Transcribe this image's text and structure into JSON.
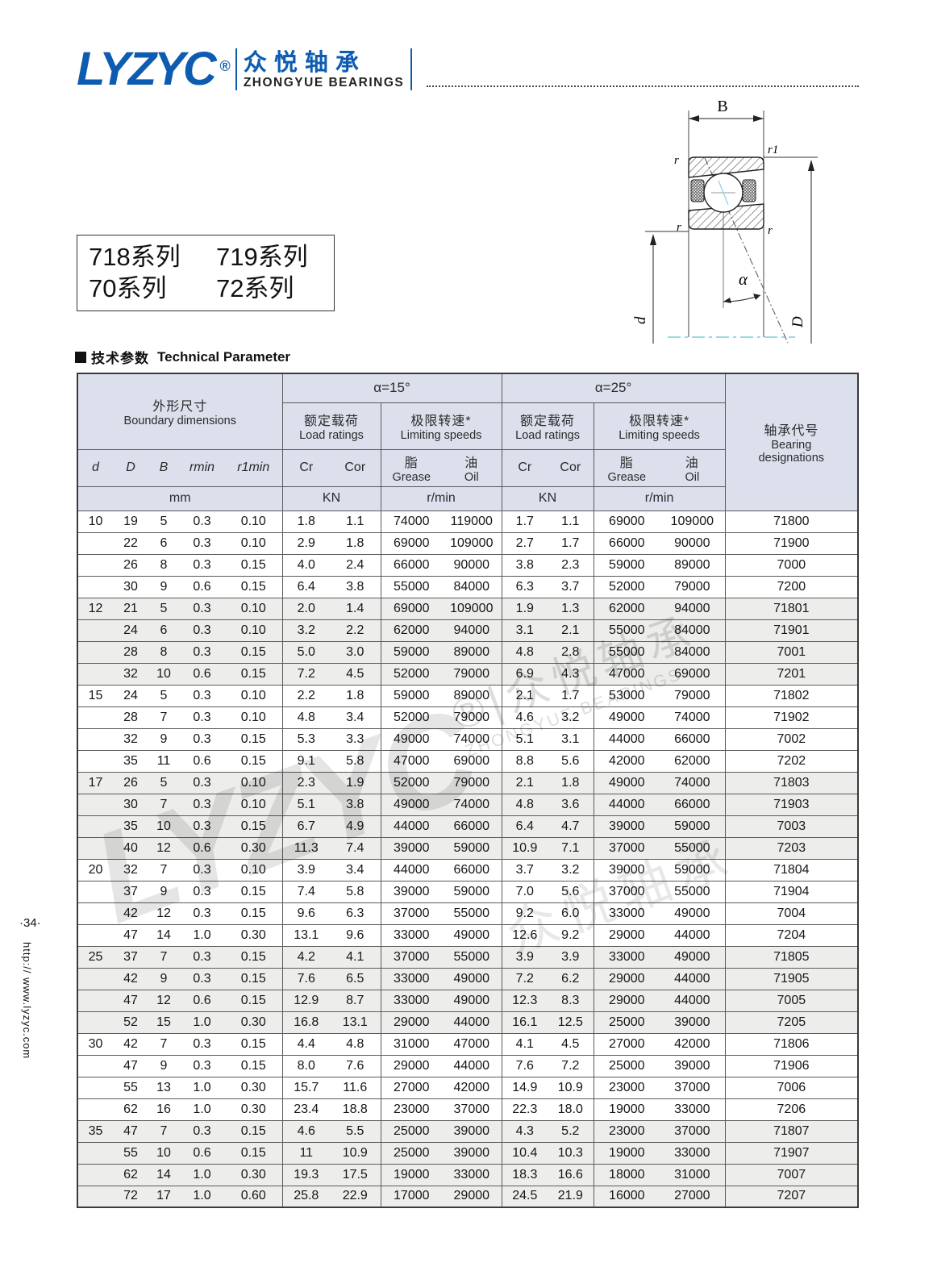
{
  "brand": {
    "logo": "LYZYC",
    "reg": "®",
    "cn": "众悦轴承",
    "en": "ZHONGYUE BEARINGS"
  },
  "series_box": {
    "line1_left": "718系列",
    "line1_right": "719系列",
    "line2_left": "70系列",
    "line2_right": "72系列"
  },
  "section": {
    "title_cn": "技术参数",
    "title_en": "Technical Parameter"
  },
  "sidebar": {
    "page": "·34·",
    "url": "http:// www.lyzyc.com"
  },
  "watermark": {
    "brand": "LYZYC",
    "cn": "®|众悦轴承",
    "en": "ZHONGYUE BEARINGS",
    "cn2": "众悦轴承"
  },
  "diagram": {
    "labels": {
      "B": "B",
      "r_top_left": "r",
      "r1_top_right": "r1",
      "r_mid_left": "r",
      "r_mid_right": "r",
      "alpha": "α",
      "d": "d",
      "D": "D"
    }
  },
  "table": {
    "header": {
      "boundary_cn": "外形尺寸",
      "boundary_en": "Boundary dimensions",
      "alpha15": "α=15°",
      "alpha25": "α=25°",
      "load_cn": "额定载荷",
      "load_en": "Load ratings",
      "speed_cn": "极限转速*",
      "speed_en": "Limiting speeds",
      "designation_cn": "轴承代号",
      "designation_en1": "Bearing",
      "designation_en2": "designations",
      "col_d": "d",
      "col_D": "D",
      "col_B": "B",
      "col_rmin": "rmin",
      "col_r1min": "r1min",
      "col_cr": "Cr",
      "col_cor": "Cor",
      "grease_cn": "脂",
      "grease_en": "Grease",
      "oil_cn": "油",
      "oil_en": "Oil",
      "unit_mm": "mm",
      "unit_kn": "KN",
      "unit_rmin": "r/min"
    },
    "rows": [
      [
        "10",
        "19",
        "5",
        "0.3",
        "0.10",
        "1.8",
        "1.1",
        "74000",
        "119000",
        "1.7",
        "1.1",
        "69000",
        "109000",
        "71800"
      ],
      [
        "",
        "22",
        "6",
        "0.3",
        "0.10",
        "2.9",
        "1.8",
        "69000",
        "109000",
        "2.7",
        "1.7",
        "66000",
        "90000",
        "71900"
      ],
      [
        "",
        "26",
        "8",
        "0.3",
        "0.15",
        "4.0",
        "2.4",
        "66000",
        "90000",
        "3.8",
        "2.3",
        "59000",
        "89000",
        "7000"
      ],
      [
        "",
        "30",
        "9",
        "0.6",
        "0.15",
        "6.4",
        "3.8",
        "55000",
        "84000",
        "6.3",
        "3.7",
        "52000",
        "79000",
        "7200"
      ],
      [
        "12",
        "21",
        "5",
        "0.3",
        "0.10",
        "2.0",
        "1.4",
        "69000",
        "109000",
        "1.9",
        "1.3",
        "62000",
        "94000",
        "71801"
      ],
      [
        "",
        "24",
        "6",
        "0.3",
        "0.10",
        "3.2",
        "2.2",
        "62000",
        "94000",
        "3.1",
        "2.1",
        "55000",
        "84000",
        "71901"
      ],
      [
        "",
        "28",
        "8",
        "0.3",
        "0.15",
        "5.0",
        "3.0",
        "59000",
        "89000",
        "4.8",
        "2.8",
        "55000",
        "84000",
        "7001"
      ],
      [
        "",
        "32",
        "10",
        "0.6",
        "0.15",
        "7.2",
        "4.5",
        "52000",
        "79000",
        "6.9",
        "4.3",
        "47000",
        "69000",
        "7201"
      ],
      [
        "15",
        "24",
        "5",
        "0.3",
        "0.10",
        "2.2",
        "1.8",
        "59000",
        "89000",
        "2.1",
        "1.7",
        "53000",
        "79000",
        "71802"
      ],
      [
        "",
        "28",
        "7",
        "0.3",
        "0.10",
        "4.8",
        "3.4",
        "52000",
        "79000",
        "4.6",
        "3.2",
        "49000",
        "74000",
        "71902"
      ],
      [
        "",
        "32",
        "9",
        "0.3",
        "0.15",
        "5.3",
        "3.3",
        "49000",
        "74000",
        "5.1",
        "3.1",
        "44000",
        "66000",
        "7002"
      ],
      [
        "",
        "35",
        "11",
        "0.6",
        "0.15",
        "9.1",
        "5.8",
        "47000",
        "69000",
        "8.8",
        "5.6",
        "42000",
        "62000",
        "7202"
      ],
      [
        "17",
        "26",
        "5",
        "0.3",
        "0.10",
        "2.3",
        "1.9",
        "52000",
        "79000",
        "2.1",
        "1.8",
        "49000",
        "74000",
        "71803"
      ],
      [
        "",
        "30",
        "7",
        "0.3",
        "0.10",
        "5.1",
        "3.8",
        "49000",
        "74000",
        "4.8",
        "3.6",
        "44000",
        "66000",
        "71903"
      ],
      [
        "",
        "35",
        "10",
        "0.3",
        "0.15",
        "6.7",
        "4.9",
        "44000",
        "66000",
        "6.4",
        "4.7",
        "39000",
        "59000",
        "7003"
      ],
      [
        "",
        "40",
        "12",
        "0.6",
        "0.30",
        "11.3",
        "7.4",
        "39000",
        "59000",
        "10.9",
        "7.1",
        "37000",
        "55000",
        "7203"
      ],
      [
        "20",
        "32",
        "7",
        "0.3",
        "0.10",
        "3.9",
        "3.4",
        "44000",
        "66000",
        "3.7",
        "3.2",
        "39000",
        "59000",
        "71804"
      ],
      [
        "",
        "37",
        "9",
        "0.3",
        "0.15",
        "7.4",
        "5.8",
        "39000",
        "59000",
        "7.0",
        "5.6",
        "37000",
        "55000",
        "71904"
      ],
      [
        "",
        "42",
        "12",
        "0.3",
        "0.15",
        "9.6",
        "6.3",
        "37000",
        "55000",
        "9.2",
        "6.0",
        "33000",
        "49000",
        "7004"
      ],
      [
        "",
        "47",
        "14",
        "1.0",
        "0.30",
        "13.1",
        "9.6",
        "33000",
        "49000",
        "12.6",
        "9.2",
        "29000",
        "44000",
        "7204"
      ],
      [
        "25",
        "37",
        "7",
        "0.3",
        "0.15",
        "4.2",
        "4.1",
        "37000",
        "55000",
        "3.9",
        "3.9",
        "33000",
        "49000",
        "71805"
      ],
      [
        "",
        "42",
        "9",
        "0.3",
        "0.15",
        "7.6",
        "6.5",
        "33000",
        "49000",
        "7.2",
        "6.2",
        "29000",
        "44000",
        "71905"
      ],
      [
        "",
        "47",
        "12",
        "0.6",
        "0.15",
        "12.9",
        "8.7",
        "33000",
        "49000",
        "12.3",
        "8.3",
        "29000",
        "44000",
        "7005"
      ],
      [
        "",
        "52",
        "15",
        "1.0",
        "0.30",
        "16.8",
        "13.1",
        "29000",
        "44000",
        "16.1",
        "12.5",
        "25000",
        "39000",
        "7205"
      ],
      [
        "30",
        "42",
        "7",
        "0.3",
        "0.15",
        "4.4",
        "4.8",
        "31000",
        "47000",
        "4.1",
        "4.5",
        "27000",
        "42000",
        "71806"
      ],
      [
        "",
        "47",
        "9",
        "0.3",
        "0.15",
        "8.0",
        "7.6",
        "29000",
        "44000",
        "7.6",
        "7.2",
        "25000",
        "39000",
        "71906"
      ],
      [
        "",
        "55",
        "13",
        "1.0",
        "0.30",
        "15.7",
        "11.6",
        "27000",
        "42000",
        "14.9",
        "10.9",
        "23000",
        "37000",
        "7006"
      ],
      [
        "",
        "62",
        "16",
        "1.0",
        "0.30",
        "23.4",
        "18.8",
        "23000",
        "37000",
        "22.3",
        "18.0",
        "19000",
        "33000",
        "7206"
      ],
      [
        "35",
        "47",
        "7",
        "0.3",
        "0.15",
        "4.6",
        "5.5",
        "25000",
        "39000",
        "4.3",
        "5.2",
        "23000",
        "37000",
        "71807"
      ],
      [
        "",
        "55",
        "10",
        "0.6",
        "0.15",
        "11",
        "10.9",
        "25000",
        "39000",
        "10.4",
        "10.3",
        "19000",
        "33000",
        "71907"
      ],
      [
        "",
        "62",
        "14",
        "1.0",
        "0.30",
        "19.3",
        "17.5",
        "19000",
        "33000",
        "18.3",
        "16.6",
        "18000",
        "31000",
        "7007"
      ],
      [
        "",
        "72",
        "17",
        "1.0",
        "0.60",
        "25.8",
        "22.9",
        "17000",
        "29000",
        "24.5",
        "21.9",
        "16000",
        "27000",
        "7207"
      ]
    ]
  },
  "colors": {
    "brand_blue": "#0d5cb0",
    "header_bg": "#dbe0ec",
    "row_alt_bg": "#edeeec",
    "border": "#5a5a5a",
    "centerline_blue": "#8fd0e8"
  }
}
